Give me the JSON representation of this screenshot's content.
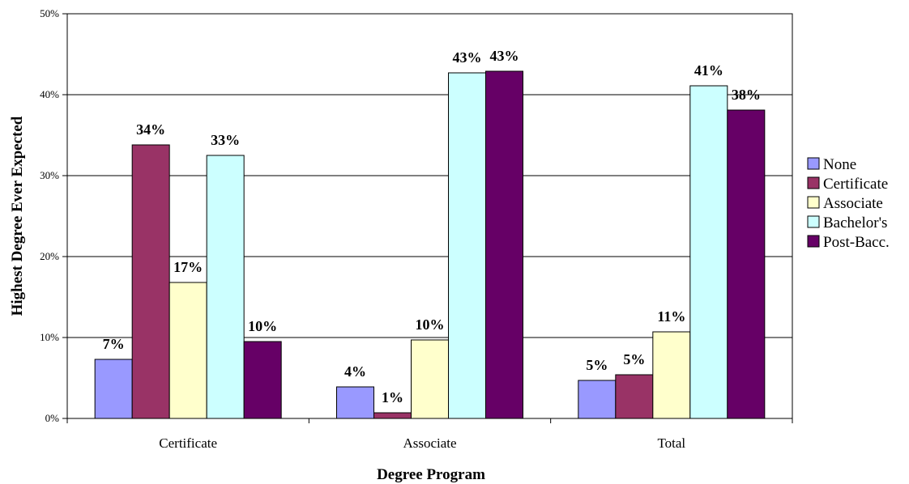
{
  "chart_data": {
    "type": "bar",
    "title": "",
    "xlabel": "Degree Program",
    "ylabel": "Highest Degree Ever Expected",
    "ylim": [
      0,
      50
    ],
    "yticks": [
      "0%",
      "10%",
      "20%",
      "30%",
      "40%",
      "50%"
    ],
    "categories": [
      "Certificate",
      "Associate",
      "Total"
    ],
    "grid": true,
    "legend_position": "right",
    "series": [
      {
        "name": "None",
        "color": "#9999ff",
        "values": [
          7.3,
          3.9,
          4.7
        ],
        "labels": [
          "7%",
          "4%",
          "5%"
        ]
      },
      {
        "name": "Certificate",
        "color": "#993366",
        "values": [
          33.8,
          0.7,
          5.4
        ],
        "labels": [
          "34%",
          "1%",
          "5%"
        ]
      },
      {
        "name": "Associate",
        "color": "#ffffcc",
        "values": [
          16.8,
          9.7,
          10.7
        ],
        "labels": [
          "17%",
          "10%",
          "11%"
        ]
      },
      {
        "name": "Bachelor's",
        "color": "#ccffff",
        "values": [
          32.5,
          42.7,
          41.1
        ],
        "labels": [
          "33%",
          "43%",
          "41%"
        ]
      },
      {
        "name": "Post-Bacc.",
        "color": "#660066",
        "values": [
          9.5,
          42.9,
          38.1
        ],
        "labels": [
          "10%",
          "43%",
          "38%"
        ]
      }
    ]
  }
}
